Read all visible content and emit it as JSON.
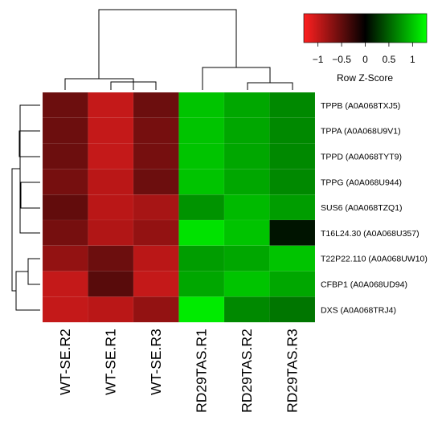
{
  "chart_data": {
    "type": "heatmap",
    "columns": [
      "WT-SE.R2",
      "WT-SE.R1",
      "WT-SE.R3",
      "RD29TAS.R1",
      "RD29TAS.R2",
      "RD29TAS.R3"
    ],
    "rows": [
      "TPPB (A0A068TXJ5)",
      "TPPA (A0A068U9V1)",
      "TPPD (A0A068TYT9)",
      "TPPG (A0A068U944)",
      "SUS6 (A0A068TZQ1)",
      "T16L24.30 (A0A068U357)",
      "T22P22.110 (A0A068UW10)",
      "CFBP1 (A0A068UD94)",
      "DXS (A0A068TRJ4)"
    ],
    "values": [
      [
        -0.55,
        -1.0,
        -0.55,
        1.0,
        0.85,
        0.7
      ],
      [
        -0.55,
        -1.0,
        -0.6,
        1.0,
        0.85,
        0.7
      ],
      [
        -0.55,
        -1.0,
        -0.6,
        1.0,
        0.85,
        0.7
      ],
      [
        -0.6,
        -0.95,
        -0.55,
        1.0,
        0.85,
        0.7
      ],
      [
        -0.5,
        -0.95,
        -0.85,
        0.75,
        0.95,
        0.8
      ],
      [
        -0.6,
        -0.9,
        -0.75,
        1.15,
        1.0,
        0.1
      ],
      [
        -0.75,
        -0.55,
        -0.95,
        0.8,
        0.85,
        1.0
      ],
      [
        -1.0,
        -0.45,
        -1.0,
        0.85,
        1.0,
        0.85
      ],
      [
        -1.0,
        -0.95,
        -0.75,
        1.2,
        0.7,
        0.6
      ]
    ],
    "color_scale": {
      "low": "#ff2020",
      "mid": "#000000",
      "high": "#00ff00"
    },
    "legend": {
      "title": "Row Z-Score",
      "ticks": [
        "−1",
        "−0.5",
        "0",
        "0.5",
        "1"
      ],
      "tick_values": [
        -1,
        -0.5,
        0,
        0.5,
        1
      ],
      "range": [
        -1.3,
        1.3
      ],
      "placement": "top-right"
    },
    "row_dendrogram_placement": "left",
    "column_dendrogram_placement": "top"
  }
}
